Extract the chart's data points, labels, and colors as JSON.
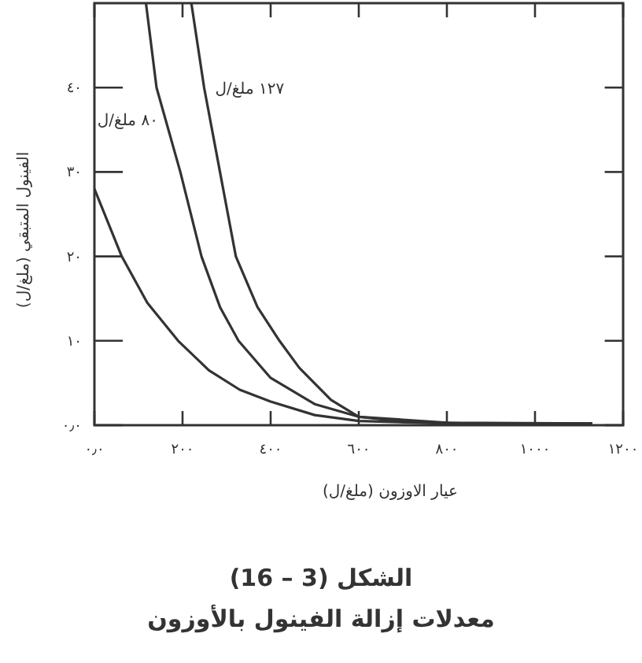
{
  "chart_data": {
    "type": "line",
    "title": "الشكل (3 – 16)",
    "subtitle": "معدلات إزالة الفينول بالأوزون",
    "xlabel": "عيار الاوزون (ملغ/ل)",
    "ylabel": "الفينول المتبقي (ملغ/ل)",
    "xlim": [
      0,
      1200
    ],
    "ylim": [
      0,
      50
    ],
    "xticks": [
      {
        "value": 0,
        "label": "٠٫٠"
      },
      {
        "value": 200,
        "label": "٢٠٠"
      },
      {
        "value": 400,
        "label": "٤٠٠"
      },
      {
        "value": 600,
        "label": "٦٠٠"
      },
      {
        "value": 800,
        "label": "٨٠٠"
      },
      {
        "value": 1000,
        "label": "١٠٠٠"
      },
      {
        "value": 1200,
        "label": "١٢٠٠"
      }
    ],
    "yticks": [
      {
        "value": 0,
        "label": "٠٫٠"
      },
      {
        "value": 10,
        "label": "١٠"
      },
      {
        "value": 20,
        "label": "٢٠"
      },
      {
        "value": 30,
        "label": "٣٠"
      },
      {
        "value": 40,
        "label": "٤٠"
      }
    ],
    "grid": false,
    "marker": "none",
    "line_style": "solid",
    "series": [
      {
        "name": "١٢٧ ملغ/ل",
        "color": "#333333",
        "x": [
          220,
          249,
          285,
          321,
          370,
          420,
          465,
          537,
          600,
          700,
          850,
          1130
        ],
        "values": [
          50,
          40,
          30,
          20,
          14,
          10,
          6.8,
          3,
          1,
          0.4,
          0.2,
          0.2
        ]
      },
      {
        "name": "٨٠ ملغ/ل",
        "color": "#333333",
        "x": [
          117,
          141,
          195,
          243,
          285,
          327,
          400,
          500,
          600,
          800,
          1130
        ],
        "values": [
          50,
          40,
          30,
          20,
          14,
          10,
          5.6,
          2.5,
          1,
          0.3,
          0.2
        ]
      },
      {
        "color": "#333333",
        "x": [
          0,
          62,
          120,
          190,
          260,
          330,
          400,
          500,
          600,
          800,
          1130
        ],
        "values": [
          28,
          20,
          14.5,
          10,
          6.5,
          4.2,
          2.8,
          1.2,
          0.5,
          0.2,
          0.2
        ]
      }
    ]
  }
}
